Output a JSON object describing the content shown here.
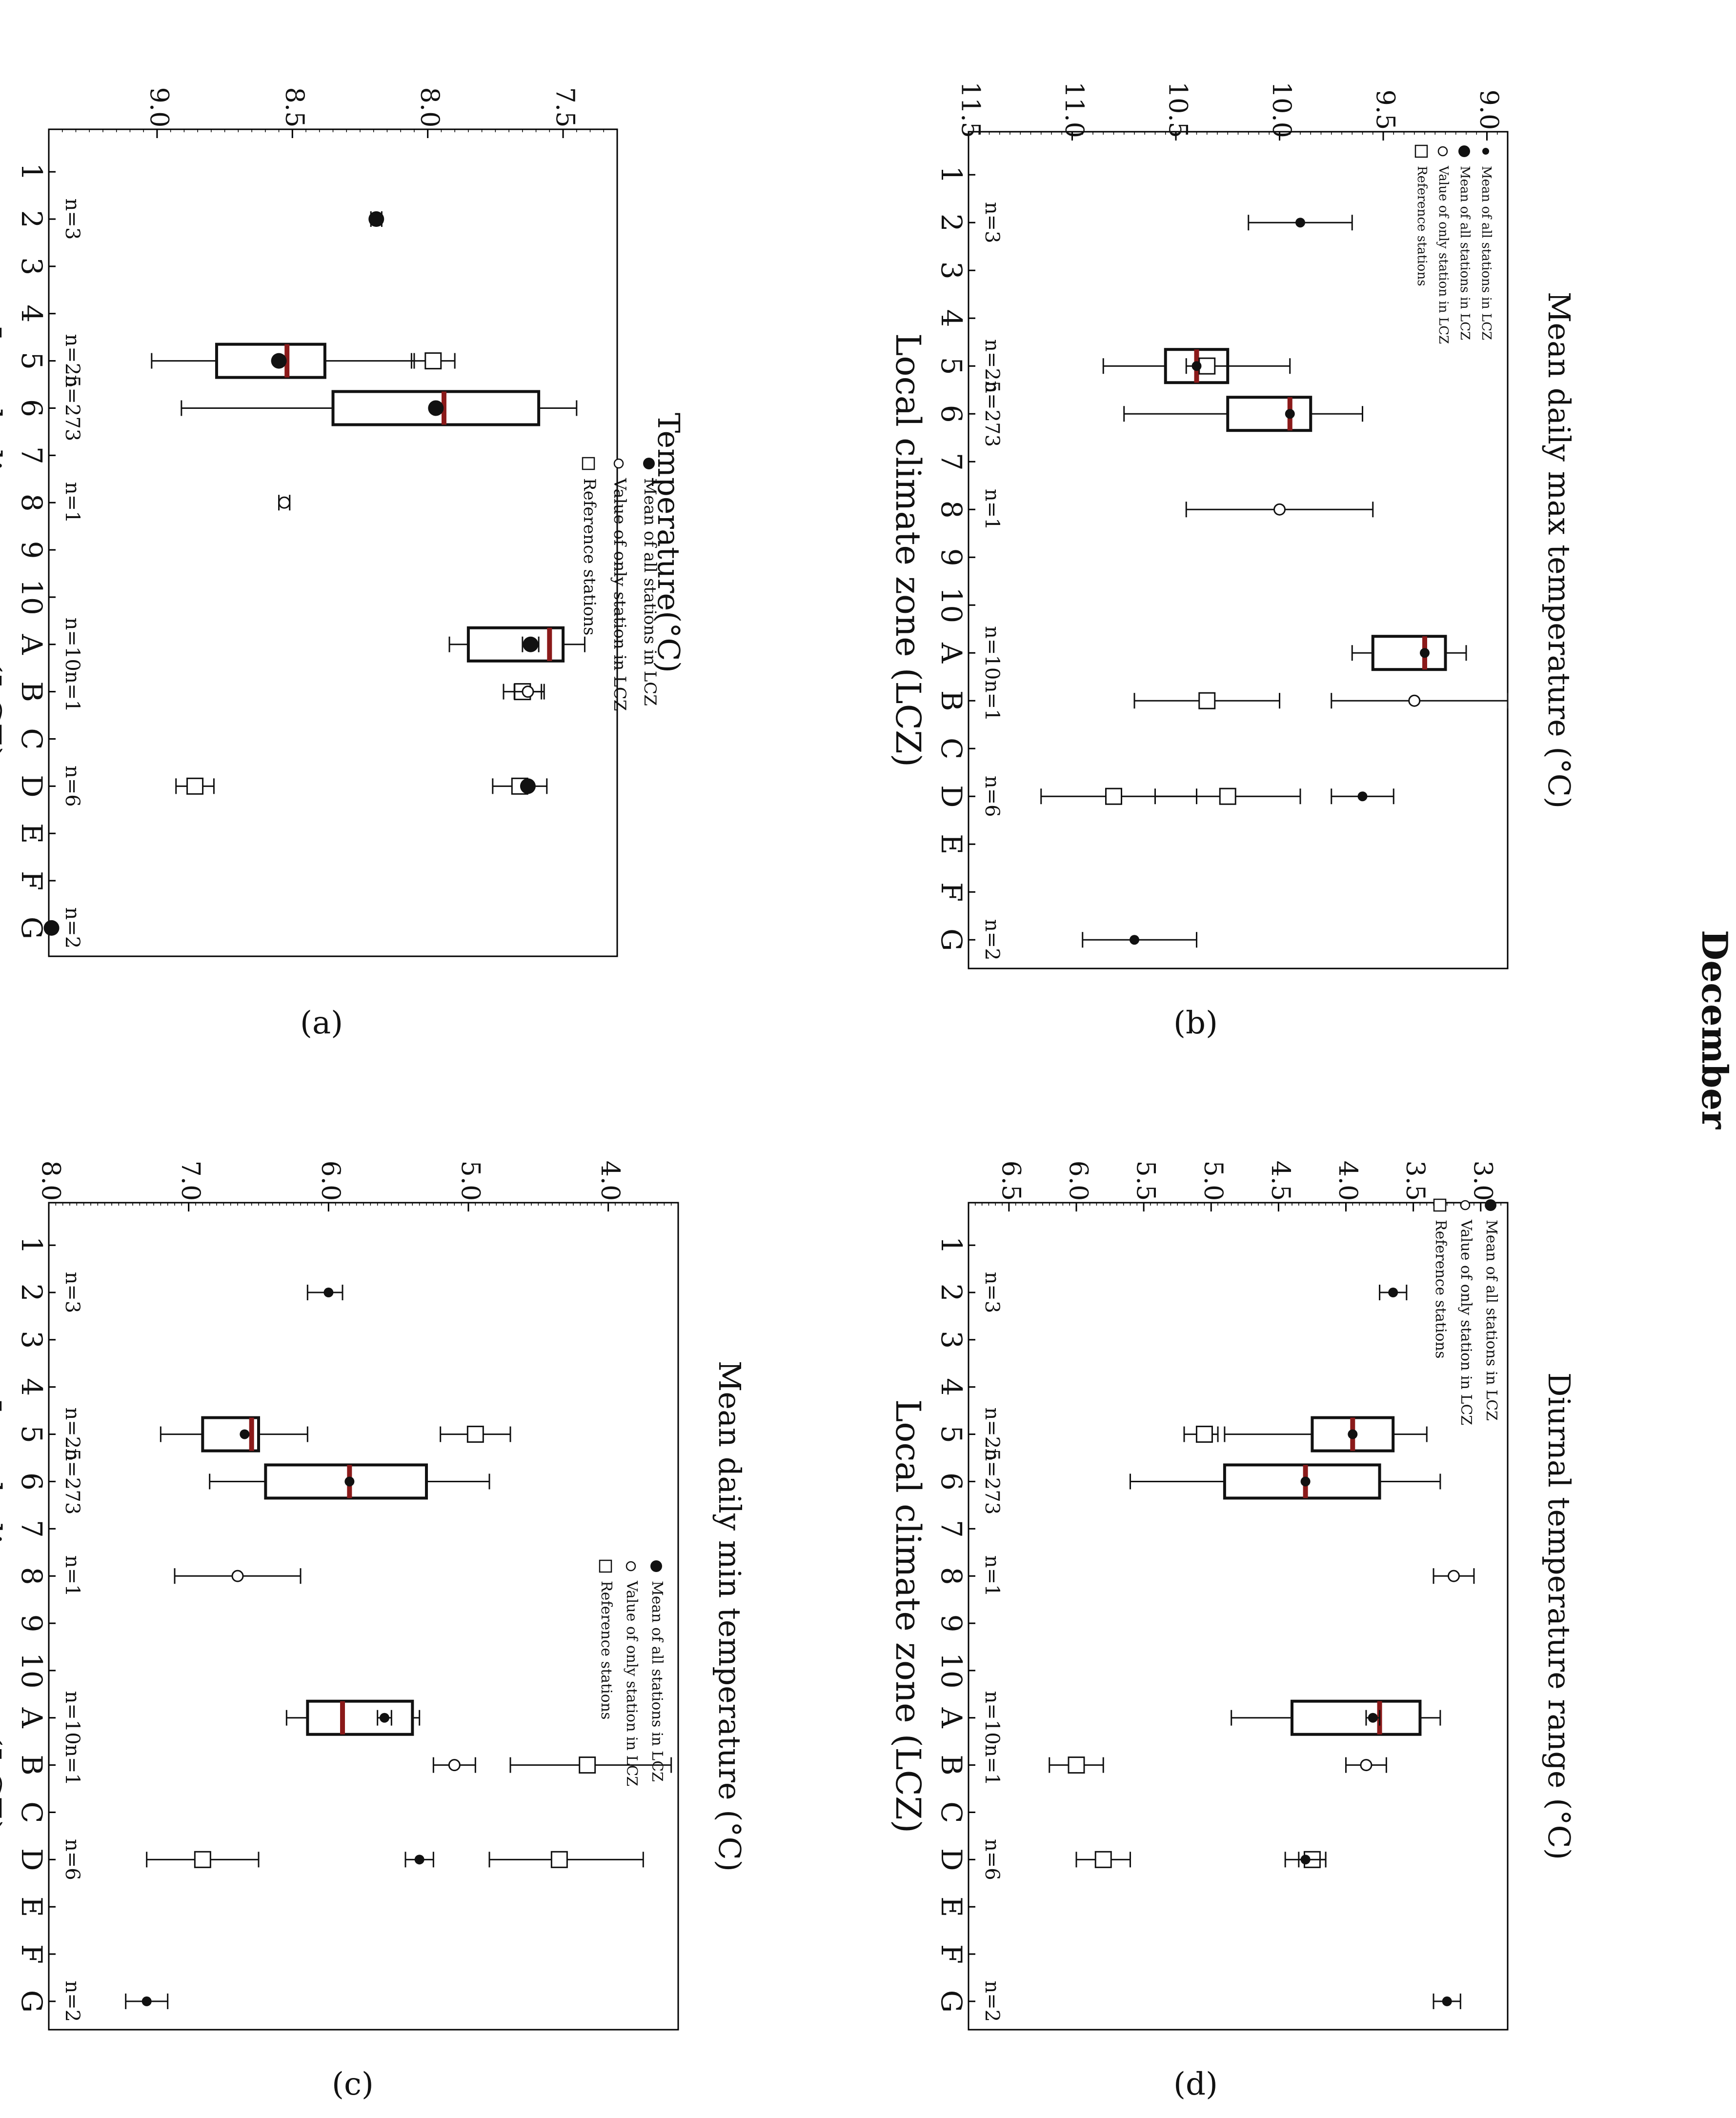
{
  "figure_title": "December",
  "panel_labels": {
    "a": "(a)",
    "b": "(b)",
    "c": "(c)",
    "d": "(d)"
  },
  "lcz_categories": [
    "1",
    "2",
    "3",
    "4",
    "5",
    "6",
    "7",
    "8",
    "9",
    "10",
    "A",
    "B",
    "C",
    "D",
    "E",
    "F",
    "G"
  ],
  "legend_items": [
    "Mean of all stations in LCZ",
    "Value of only station in LCZ",
    "Reference stations"
  ],
  "colors": {
    "median": "#8B1A1A",
    "ink": "#111111",
    "frame": "#000000"
  },
  "chart_data": [
    {
      "id": "a",
      "type": "box",
      "ylabel": "Temperature(°C)",
      "xlabel": "Local climate zone (LCZ)",
      "ylim": [
        7.3,
        9.4
      ],
      "yticks": [
        "7.5",
        "8.0",
        "8.5",
        "9.0"
      ],
      "legend": [
        "Mean of all stations in LCZ",
        "Value of only station in LCZ",
        "Reference stations"
      ],
      "n_labels": [
        {
          "cat": "2",
          "text": "n=3"
        },
        {
          "cat": "5",
          "text": "n=25"
        },
        {
          "cat": "6",
          "text": "n=273"
        },
        {
          "cat": "8",
          "text": "n=1"
        },
        {
          "cat": "A",
          "text": "n=10"
        },
        {
          "cat": "B",
          "text": "n=1"
        },
        {
          "cat": "D",
          "text": "n=6"
        },
        {
          "cat": "G",
          "text": "n=2"
        }
      ],
      "boxes": [
        {
          "cat": "5",
          "whisker_low": 8.05,
          "q1": 8.38,
          "median": 8.52,
          "q3": 8.78,
          "whisker_high": 9.02
        },
        {
          "cat": "6",
          "whisker_low": 7.45,
          "q1": 7.59,
          "median": 7.94,
          "q3": 8.35,
          "whisker_high": 8.91
        },
        {
          "cat": "A",
          "whisker_low": 7.42,
          "q1": 7.5,
          "median": 7.55,
          "q3": 7.85,
          "whisker_high": 7.92
        }
      ],
      "means": [
        {
          "cat": "2",
          "value": 8.19,
          "err_low": 8.17,
          "err_high": 8.21
        },
        {
          "cat": "5",
          "value": 8.55
        },
        {
          "cat": "6",
          "value": 7.97
        },
        {
          "cat": "A",
          "value": 7.62,
          "err_low": 7.59,
          "err_high": 7.65
        },
        {
          "cat": "D",
          "value": 7.63
        },
        {
          "cat": "G",
          "value": 9.39
        }
      ],
      "single_values": [
        {
          "cat": "8",
          "value": 8.53,
          "err_low": 8.51,
          "err_high": 8.55
        },
        {
          "cat": "B",
          "value": 7.63,
          "err_low": 7.58,
          "err_high": 7.68
        }
      ],
      "reference": [
        {
          "cat": "5",
          "value": 7.98,
          "err_low": 7.9,
          "err_high": 8.06
        },
        {
          "cat": "B",
          "value": 7.65,
          "err_low": 7.57,
          "err_high": 7.72
        },
        {
          "cat": "D",
          "value": 7.66,
          "err_low": 7.56,
          "err_high": 7.76
        },
        {
          "cat": "D",
          "value": 8.86,
          "err_low": 8.79,
          "err_high": 8.93
        }
      ]
    },
    {
      "id": "b",
      "type": "box",
      "ylabel": "Mean daily max temperature (°C)",
      "xlabel": "Local climate zone (LCZ)",
      "ylim": [
        8.9,
        11.5
      ],
      "yticks": [
        "9.0",
        "9.5",
        "10.0",
        "10.5",
        "11.0",
        "11.5"
      ],
      "legend": [
        "Mean of all stations in LCZ",
        "Mean of all stations in LCZ",
        "Value of only station in LCZ",
        "Reference stations"
      ],
      "n_labels": [
        {
          "cat": "2",
          "text": "n=3"
        },
        {
          "cat": "5",
          "text": "n=25"
        },
        {
          "cat": "6",
          "text": "n=273"
        },
        {
          "cat": "8",
          "text": "n=1"
        },
        {
          "cat": "A",
          "text": "n=10"
        },
        {
          "cat": "B",
          "text": "n=1"
        },
        {
          "cat": "D",
          "text": "n=6"
        },
        {
          "cat": "G",
          "text": "n=2"
        }
      ],
      "boxes": [
        {
          "cat": "5",
          "whisker_low": 9.95,
          "q1": 10.25,
          "median": 10.4,
          "q3": 10.55,
          "whisker_high": 10.85
        },
        {
          "cat": "6",
          "whisker_low": 9.6,
          "q1": 9.85,
          "median": 9.95,
          "q3": 10.25,
          "whisker_high": 10.75
        },
        {
          "cat": "A",
          "whisker_low": 9.1,
          "q1": 9.2,
          "median": 9.3,
          "q3": 9.55,
          "whisker_high": 9.65
        }
      ],
      "means": [
        {
          "cat": "2",
          "value": 9.9,
          "err_low": 9.65,
          "err_high": 10.15
        },
        {
          "cat": "5",
          "value": 10.4
        },
        {
          "cat": "6",
          "value": 9.95
        },
        {
          "cat": "A",
          "value": 9.3
        },
        {
          "cat": "D",
          "value": 9.6,
          "err_low": 9.45,
          "err_high": 9.75
        },
        {
          "cat": "G",
          "value": 10.7,
          "err_low": 10.4,
          "err_high": 10.95
        }
      ],
      "single_values": [
        {
          "cat": "8",
          "value": 10.0,
          "err_low": 9.55,
          "err_high": 10.45
        },
        {
          "cat": "B",
          "value": 9.35,
          "err_low": 8.9,
          "err_high": 9.75
        }
      ],
      "reference": [
        {
          "cat": "5",
          "value": 10.35,
          "err_low": 10.25,
          "err_high": 10.45
        },
        {
          "cat": "B",
          "value": 10.35,
          "err_low": 10.0,
          "err_high": 10.7
        },
        {
          "cat": "D",
          "value": 10.25,
          "err_low": 9.9,
          "err_high": 10.6
        },
        {
          "cat": "D",
          "value": 10.8,
          "err_low": 10.4,
          "err_high": 11.15
        }
      ]
    },
    {
      "id": "c",
      "type": "box",
      "ylabel": "Mean daily min temperature (°C)",
      "xlabel": "Local climate zone (LCZ)",
      "ylim": [
        3.5,
        8.0
      ],
      "yticks": [
        "4.0",
        "5.0",
        "6.0",
        "7.0",
        "8.0"
      ],
      "legend": [
        "Mean of all stations in LCZ",
        "Value of only station in LCZ",
        "Reference stations"
      ],
      "n_labels": [
        {
          "cat": "2",
          "text": "n=3"
        },
        {
          "cat": "5",
          "text": "n=25"
        },
        {
          "cat": "6",
          "text": "n=273"
        },
        {
          "cat": "8",
          "text": "n=1"
        },
        {
          "cat": "A",
          "text": "n=10"
        },
        {
          "cat": "B",
          "text": "n=1"
        },
        {
          "cat": "D",
          "text": "n=6"
        },
        {
          "cat": "G",
          "text": "n=2"
        }
      ],
      "boxes": [
        {
          "cat": "5",
          "whisker_low": 6.15,
          "q1": 6.5,
          "median": 6.55,
          "q3": 6.9,
          "whisker_high": 7.2
        },
        {
          "cat": "6",
          "whisker_low": 4.85,
          "q1": 5.3,
          "median": 5.85,
          "q3": 6.45,
          "whisker_high": 6.85
        },
        {
          "cat": "A",
          "whisker_low": 5.35,
          "q1": 5.4,
          "median": 5.9,
          "q3": 6.15,
          "whisker_high": 6.3
        }
      ],
      "means": [
        {
          "cat": "2",
          "value": 6.0,
          "err_low": 5.9,
          "err_high": 6.15
        },
        {
          "cat": "5",
          "value": 6.6
        },
        {
          "cat": "6",
          "value": 5.85
        },
        {
          "cat": "A",
          "value": 5.6,
          "err_low": 5.55,
          "err_high": 5.65
        },
        {
          "cat": "D",
          "value": 5.35,
          "err_low": 5.25,
          "err_high": 5.45
        },
        {
          "cat": "G",
          "value": 7.3,
          "err_low": 7.15,
          "err_high": 7.45
        }
      ],
      "single_values": [
        {
          "cat": "8",
          "value": 6.65,
          "err_low": 6.2,
          "err_high": 7.1
        },
        {
          "cat": "B",
          "value": 5.1,
          "err_low": 4.95,
          "err_high": 5.25
        }
      ],
      "reference": [
        {
          "cat": "5",
          "value": 4.95,
          "err_low": 4.7,
          "err_high": 5.2
        },
        {
          "cat": "B",
          "value": 4.15,
          "err_low": 3.55,
          "err_high": 4.7
        },
        {
          "cat": "D",
          "value": 4.35,
          "err_low": 3.75,
          "err_high": 4.85
        },
        {
          "cat": "D",
          "value": 6.9,
          "err_low": 6.5,
          "err_high": 7.3
        }
      ]
    },
    {
      "id": "d",
      "type": "box",
      "ylabel": "Diurnal temperature range (°C)",
      "xlabel": "Local climate zone (LCZ)",
      "ylim": [
        2.8,
        6.8
      ],
      "yticks": [
        "3.0",
        "3.5",
        "4.0",
        "4.5",
        "5.0",
        "5.5",
        "6.0",
        "6.5"
      ],
      "legend": [
        "Mean of all stations in LCZ",
        "Value of only station in LCZ",
        "Reference stations"
      ],
      "n_labels": [
        {
          "cat": "2",
          "text": "n=3"
        },
        {
          "cat": "5",
          "text": "n=25"
        },
        {
          "cat": "6",
          "text": "n=273"
        },
        {
          "cat": "8",
          "text": "n=1"
        },
        {
          "cat": "A",
          "text": "n=10"
        },
        {
          "cat": "B",
          "text": "n=1"
        },
        {
          "cat": "D",
          "text": "n=6"
        },
        {
          "cat": "G",
          "text": "n=2"
        }
      ],
      "boxes": [
        {
          "cat": "5",
          "whisker_low": 3.4,
          "q1": 3.65,
          "median": 3.95,
          "q3": 4.25,
          "whisker_high": 4.9
        },
        {
          "cat": "6",
          "whisker_low": 3.3,
          "q1": 3.75,
          "median": 4.3,
          "q3": 4.9,
          "whisker_high": 5.6
        },
        {
          "cat": "A",
          "whisker_low": 3.3,
          "q1": 3.45,
          "median": 3.75,
          "q3": 4.4,
          "whisker_high": 4.85
        }
      ],
      "means": [
        {
          "cat": "2",
          "value": 3.65,
          "err_low": 3.55,
          "err_high": 3.75
        },
        {
          "cat": "5",
          "value": 3.95
        },
        {
          "cat": "6",
          "value": 4.3
        },
        {
          "cat": "A",
          "value": 3.8,
          "err_low": 3.75,
          "err_high": 3.85
        },
        {
          "cat": "D",
          "value": 4.3,
          "err_low": 4.15,
          "err_high": 4.45
        },
        {
          "cat": "G",
          "value": 3.25,
          "err_low": 3.15,
          "err_high": 3.35
        }
      ],
      "single_values": [
        {
          "cat": "8",
          "value": 3.2,
          "err_low": 3.05,
          "err_high": 3.35
        },
        {
          "cat": "B",
          "value": 3.85,
          "err_low": 3.7,
          "err_high": 4.0
        }
      ],
      "reference": [
        {
          "cat": "5",
          "value": 5.05,
          "err_low": 4.95,
          "err_high": 5.2
        },
        {
          "cat": "B",
          "value": 6.0,
          "err_low": 5.8,
          "err_high": 6.2
        },
        {
          "cat": "D",
          "value": 4.25,
          "err_low": 4.15,
          "err_high": 4.35
        },
        {
          "cat": "D",
          "value": 5.8,
          "err_low": 5.6,
          "err_high": 6.0
        }
      ]
    }
  ]
}
